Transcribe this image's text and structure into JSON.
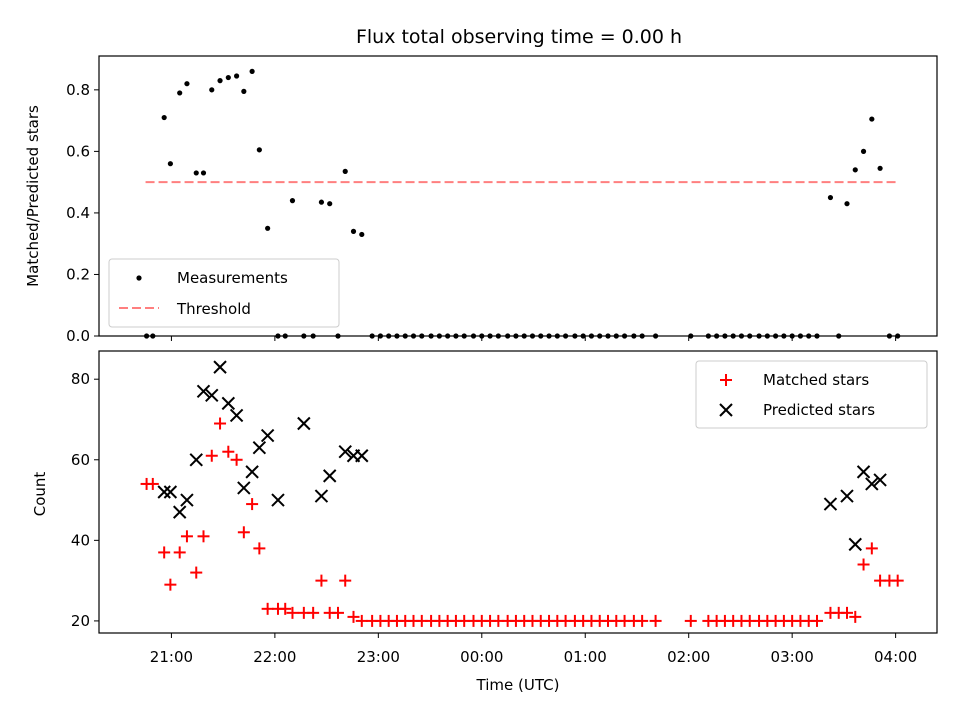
{
  "figure": {
    "title": "Flux total observing time = 0.00 h"
  },
  "chart_data": [
    {
      "type": "scatter",
      "title": "Flux total observing time = 0.00 h",
      "xlabel": "",
      "ylabel": "Matched/Predicted stars",
      "x_unit": "hours",
      "x_ticks": [
        21,
        22,
        23,
        24,
        25,
        26,
        27,
        28
      ],
      "ylim": [
        0,
        0.91
      ],
      "y_ticks": [
        0.0,
        0.2,
        0.4,
        0.6,
        0.8
      ],
      "y_tick_labels": [
        "0.0",
        "0.2",
        "0.4",
        "0.6",
        "0.8"
      ],
      "grid": false,
      "legend_position": "lower-left",
      "series": [
        {
          "name": "Measurements",
          "color": "#000000",
          "marker": "dot",
          "x": [
            20.76,
            20.82,
            20.93,
            20.99,
            21.08,
            21.15,
            21.24,
            21.31,
            21.39,
            21.47,
            21.55,
            21.63,
            21.7,
            21.78,
            21.85,
            21.93,
            22.03,
            22.1,
            22.17,
            22.28,
            22.37,
            22.45,
            22.53,
            22.61,
            22.68,
            22.76,
            22.84,
            22.94,
            23.02,
            23.1,
            23.18,
            23.26,
            23.34,
            23.42,
            23.51,
            23.59,
            23.67,
            23.75,
            23.83,
            23.92,
            24.0,
            24.08,
            24.16,
            24.25,
            24.33,
            24.41,
            24.49,
            24.57,
            24.65,
            24.73,
            24.81,
            24.9,
            24.98,
            25.06,
            25.14,
            25.22,
            25.3,
            25.38,
            25.47,
            25.55,
            25.68,
            26.02,
            26.19,
            26.27,
            26.35,
            26.43,
            26.51,
            26.59,
            26.68,
            26.76,
            26.84,
            26.92,
            27.0,
            27.08,
            27.16,
            27.24,
            27.37,
            27.45,
            27.53,
            27.61,
            27.69,
            27.77,
            27.85,
            27.94,
            28.02
          ],
          "y": [
            0,
            0,
            0.71,
            0.56,
            0.79,
            0.82,
            0.53,
            0.53,
            0.8,
            0.83,
            0.84,
            0.845,
            0.795,
            0.86,
            0.605,
            0.35,
            0,
            0,
            0.44,
            0,
            0,
            0.435,
            0.43,
            0,
            0.535,
            0.34,
            0.33,
            0,
            0,
            0,
            0,
            0,
            0,
            0,
            0,
            0,
            0,
            0,
            0,
            0,
            0,
            0,
            0,
            0,
            0,
            0,
            0,
            0,
            0,
            0,
            0,
            0,
            0,
            0,
            0,
            0,
            0,
            0,
            0,
            0,
            0,
            0,
            0,
            0,
            0,
            0,
            0,
            0,
            0,
            0,
            0,
            0,
            0,
            0,
            0,
            0,
            0.45,
            0,
            0.43,
            0.54,
            0.6,
            0.705,
            0.545,
            0,
            0
          ]
        },
        {
          "name": "Threshold",
          "color": "#ff7f7f",
          "style": "dashed",
          "x": [
            20.75,
            28.0
          ],
          "y": [
            0.5,
            0.5
          ]
        }
      ]
    },
    {
      "type": "scatter",
      "xlabel": "Time (UTC)",
      "ylabel": "Count",
      "x_unit": "hours",
      "xlim": [
        20.3,
        28.4
      ],
      "ylim": [
        17,
        87
      ],
      "y_ticks": [
        20,
        40,
        60,
        80
      ],
      "y_tick_labels": [
        "20",
        "40",
        "60",
        "80"
      ],
      "x_ticks": [
        21,
        22,
        23,
        24,
        25,
        26,
        27,
        28
      ],
      "x_tick_labels": [
        "21:00",
        "22:00",
        "23:00",
        "00:00",
        "01:00",
        "02:00",
        "03:00",
        "04:00"
      ],
      "grid": false,
      "legend_position": "upper-right",
      "series": [
        {
          "name": "Matched stars",
          "color": "#ff0000",
          "marker": "plus",
          "x": [
            20.76,
            20.82,
            20.93,
            20.99,
            21.08,
            21.15,
            21.24,
            21.31,
            21.39,
            21.47,
            21.55,
            21.63,
            21.7,
            21.78,
            21.85,
            21.93,
            22.03,
            22.1,
            22.17,
            22.28,
            22.37,
            22.45,
            22.53,
            22.61,
            22.68,
            22.76,
            22.84,
            22.94,
            23.02,
            23.1,
            23.18,
            23.26,
            23.34,
            23.42,
            23.51,
            23.59,
            23.67,
            23.75,
            23.83,
            23.92,
            24.0,
            24.08,
            24.16,
            24.25,
            24.33,
            24.41,
            24.49,
            24.57,
            24.65,
            24.73,
            24.81,
            24.9,
            24.98,
            25.06,
            25.14,
            25.22,
            25.3,
            25.38,
            25.47,
            25.55,
            25.68,
            26.02,
            26.19,
            26.27,
            26.35,
            26.43,
            26.51,
            26.59,
            26.68,
            26.76,
            26.84,
            26.92,
            27.0,
            27.08,
            27.16,
            27.24,
            27.37,
            27.45,
            27.53,
            27.61,
            27.69,
            27.77,
            27.85,
            27.94,
            28.02
          ],
          "y": [
            54,
            54,
            37,
            29,
            37,
            41,
            32,
            41,
            61,
            69,
            62,
            60,
            42,
            49,
            38,
            23,
            23,
            23,
            22,
            22,
            22,
            30,
            22,
            22,
            30,
            21,
            20,
            20,
            20,
            20,
            20,
            20,
            20,
            20,
            20,
            20,
            20,
            20,
            20,
            20,
            20,
            20,
            20,
            20,
            20,
            20,
            20,
            20,
            20,
            20,
            20,
            20,
            20,
            20,
            20,
            20,
            20,
            20,
            20,
            20,
            20,
            20,
            20,
            20,
            20,
            20,
            20,
            20,
            20,
            20,
            20,
            20,
            20,
            20,
            20,
            20,
            22,
            22,
            22,
            21,
            34,
            38,
            30,
            30,
            30
          ]
        },
        {
          "name": "Predicted stars",
          "color": "#000000",
          "marker": "x",
          "x": [
            20.93,
            20.99,
            21.08,
            21.15,
            21.24,
            21.31,
            21.39,
            21.47,
            21.55,
            21.63,
            21.7,
            21.78,
            21.85,
            21.93,
            22.03,
            22.28,
            22.45,
            22.53,
            22.68,
            22.76,
            22.84,
            27.37,
            27.53,
            27.61,
            27.69,
            27.77,
            27.85
          ],
          "y": [
            52,
            52,
            47,
            50,
            60,
            77,
            76,
            83,
            74,
            71,
            53,
            57,
            63,
            66,
            50,
            69,
            51,
            56,
            62,
            61,
            61,
            49,
            51,
            39,
            57,
            54,
            55
          ]
        }
      ]
    }
  ]
}
